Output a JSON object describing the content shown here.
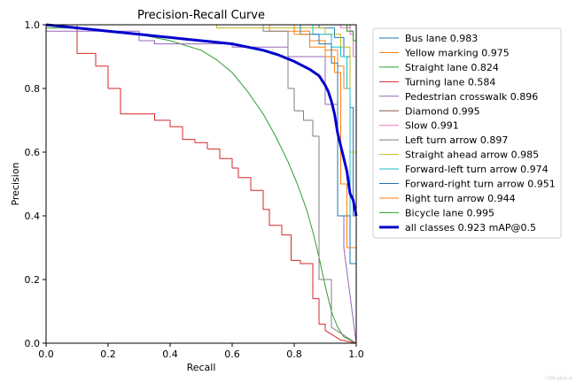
{
  "chart_data": {
    "type": "line",
    "title": "Precision-Recall Curve",
    "xlabel": "Recall",
    "ylabel": "Precision",
    "xlim": [
      0.0,
      1.0
    ],
    "ylim": [
      0.0,
      1.0
    ],
    "xticks": [
      "0.0",
      "0.2",
      "0.4",
      "0.6",
      "0.8",
      "1.0"
    ],
    "yticks": [
      "0.0",
      "0.2",
      "0.4",
      "0.6",
      "0.8",
      "1.0"
    ],
    "grid": false,
    "legend_position": "outside-right",
    "series": [
      {
        "name": "Bus lane 0.983",
        "color": "#1f77b4",
        "width": 1,
        "points": [
          [
            0,
            1
          ],
          [
            0.88,
            1
          ],
          [
            0.88,
            0.99
          ],
          [
            0.93,
            0.99
          ],
          [
            0.93,
            0.96
          ],
          [
            0.96,
            0.96
          ],
          [
            0.96,
            0.9
          ],
          [
            0.98,
            0.9
          ],
          [
            0.98,
            0.74
          ],
          [
            0.99,
            0.74
          ],
          [
            0.99,
            0.4
          ],
          [
            1.0,
            0.4
          ],
          [
            1.0,
            0.0
          ]
        ]
      },
      {
        "name": "Yellow marking 0.975",
        "color": "#ff7f0e",
        "width": 1,
        "points": [
          [
            0,
            1
          ],
          [
            0.72,
            1
          ],
          [
            0.72,
            0.98
          ],
          [
            0.85,
            0.98
          ],
          [
            0.85,
            0.95
          ],
          [
            0.9,
            0.95
          ],
          [
            0.9,
            0.92
          ],
          [
            0.94,
            0.92
          ],
          [
            0.94,
            0.87
          ],
          [
            0.96,
            0.87
          ],
          [
            0.96,
            0.8
          ],
          [
            0.98,
            0.8
          ],
          [
            0.98,
            0.6
          ],
          [
            1.0,
            0.6
          ],
          [
            1.0,
            0.0
          ]
        ]
      },
      {
        "name": "Straight lane 0.824",
        "color": "#2ca02c",
        "width": 1,
        "points": [
          [
            0,
            0.99
          ],
          [
            0.1,
            0.99
          ],
          [
            0.2,
            0.98
          ],
          [
            0.3,
            0.97
          ],
          [
            0.4,
            0.95
          ],
          [
            0.5,
            0.92
          ],
          [
            0.55,
            0.89
          ],
          [
            0.6,
            0.85
          ],
          [
            0.65,
            0.79
          ],
          [
            0.7,
            0.72
          ],
          [
            0.74,
            0.65
          ],
          [
            0.78,
            0.57
          ],
          [
            0.81,
            0.5
          ],
          [
            0.84,
            0.42
          ],
          [
            0.86,
            0.35
          ],
          [
            0.88,
            0.27
          ],
          [
            0.9,
            0.18
          ],
          [
            0.92,
            0.1
          ],
          [
            0.94,
            0.05
          ],
          [
            0.96,
            0.02
          ],
          [
            1.0,
            0.0
          ]
        ]
      },
      {
        "name": "Turning lane 0.584",
        "color": "#d62728",
        "width": 1,
        "points": [
          [
            0,
            1
          ],
          [
            0.1,
            1
          ],
          [
            0.1,
            0.91
          ],
          [
            0.16,
            0.91
          ],
          [
            0.16,
            0.87
          ],
          [
            0.2,
            0.87
          ],
          [
            0.2,
            0.8
          ],
          [
            0.24,
            0.8
          ],
          [
            0.24,
            0.72
          ],
          [
            0.35,
            0.72
          ],
          [
            0.35,
            0.7
          ],
          [
            0.4,
            0.7
          ],
          [
            0.4,
            0.68
          ],
          [
            0.44,
            0.68
          ],
          [
            0.44,
            0.64
          ],
          [
            0.48,
            0.64
          ],
          [
            0.48,
            0.63
          ],
          [
            0.52,
            0.63
          ],
          [
            0.52,
            0.61
          ],
          [
            0.56,
            0.61
          ],
          [
            0.56,
            0.58
          ],
          [
            0.6,
            0.58
          ],
          [
            0.6,
            0.55
          ],
          [
            0.62,
            0.55
          ],
          [
            0.62,
            0.52
          ],
          [
            0.66,
            0.52
          ],
          [
            0.66,
            0.48
          ],
          [
            0.7,
            0.48
          ],
          [
            0.7,
            0.42
          ],
          [
            0.72,
            0.42
          ],
          [
            0.72,
            0.37
          ],
          [
            0.76,
            0.37
          ],
          [
            0.76,
            0.34
          ],
          [
            0.79,
            0.34
          ],
          [
            0.79,
            0.26
          ],
          [
            0.82,
            0.26
          ],
          [
            0.82,
            0.25
          ],
          [
            0.86,
            0.25
          ],
          [
            0.86,
            0.14
          ],
          [
            0.88,
            0.14
          ],
          [
            0.88,
            0.06
          ],
          [
            0.9,
            0.06
          ],
          [
            0.9,
            0.04
          ],
          [
            0.95,
            0.01
          ],
          [
            1.0,
            0.0
          ]
        ]
      },
      {
        "name": "Pedestrian crosswalk 0.896",
        "color": "#9467bd",
        "width": 1,
        "points": [
          [
            0,
            0.98
          ],
          [
            0.3,
            0.98
          ],
          [
            0.3,
            0.95
          ],
          [
            0.35,
            0.95
          ],
          [
            0.35,
            0.94
          ],
          [
            0.6,
            0.94
          ],
          [
            0.6,
            0.93
          ],
          [
            0.78,
            0.93
          ],
          [
            0.78,
            0.9
          ],
          [
            0.9,
            0.9
          ],
          [
            0.9,
            0.75
          ],
          [
            0.94,
            0.75
          ],
          [
            0.94,
            0.4
          ],
          [
            0.96,
            0.4
          ],
          [
            0.96,
            0.3
          ],
          [
            1.0,
            0.0
          ]
        ]
      },
      {
        "name": "Diamond 0.995",
        "color": "#8c564b",
        "width": 1,
        "points": [
          [
            0,
            1
          ],
          [
            0.98,
            1
          ],
          [
            0.98,
            0.98
          ],
          [
            0.99,
            0.98
          ],
          [
            0.99,
            0.95
          ],
          [
            1.0,
            0.95
          ],
          [
            1.0,
            0.0
          ]
        ]
      },
      {
        "name": "Slow 0.991",
        "color": "#e377c2",
        "width": 1,
        "points": [
          [
            0,
            1
          ],
          [
            0.95,
            1
          ],
          [
            0.95,
            0.99
          ],
          [
            0.98,
            0.99
          ],
          [
            0.98,
            0.97
          ],
          [
            0.99,
            0.97
          ],
          [
            0.99,
            0.9
          ],
          [
            1.0,
            0.9
          ],
          [
            1.0,
            0.0
          ]
        ]
      },
      {
        "name": "Left turn arrow 0.897",
        "color": "#7f7f7f",
        "width": 1,
        "points": [
          [
            0,
            1
          ],
          [
            0.7,
            1
          ],
          [
            0.7,
            0.98
          ],
          [
            0.78,
            0.98
          ],
          [
            0.78,
            0.8
          ],
          [
            0.8,
            0.8
          ],
          [
            0.8,
            0.73
          ],
          [
            0.83,
            0.73
          ],
          [
            0.83,
            0.7
          ],
          [
            0.86,
            0.7
          ],
          [
            0.86,
            0.65
          ],
          [
            0.88,
            0.65
          ],
          [
            0.88,
            0.2
          ],
          [
            0.92,
            0.2
          ],
          [
            0.92,
            0.05
          ],
          [
            1.0,
            0.0
          ]
        ]
      },
      {
        "name": "Straight ahead arrow 0.985",
        "color": "#bcbd22",
        "width": 1,
        "points": [
          [
            0,
            1
          ],
          [
            0.55,
            1
          ],
          [
            0.55,
            0.99
          ],
          [
            0.9,
            0.99
          ],
          [
            0.9,
            0.97
          ],
          [
            0.95,
            0.97
          ],
          [
            0.95,
            0.93
          ],
          [
            0.98,
            0.93
          ],
          [
            0.98,
            0.6
          ],
          [
            1.0,
            0.6
          ],
          [
            1.0,
            0.0
          ]
        ]
      },
      {
        "name": "Forward-left turn arrow 0.974",
        "color": "#17becf",
        "width": 1,
        "points": [
          [
            0,
            1
          ],
          [
            0.86,
            1
          ],
          [
            0.86,
            0.97
          ],
          [
            0.92,
            0.97
          ],
          [
            0.92,
            0.93
          ],
          [
            0.95,
            0.93
          ],
          [
            0.95,
            0.9
          ],
          [
            0.97,
            0.9
          ],
          [
            0.97,
            0.8
          ],
          [
            0.98,
            0.8
          ],
          [
            0.98,
            0.3
          ],
          [
            1.0,
            0.3
          ],
          [
            1.0,
            0.0
          ]
        ]
      },
      {
        "name": "Forward-right turn arrow 0.951",
        "color": "#1f77b4",
        "width": 1,
        "points": [
          [
            0,
            1
          ],
          [
            0.82,
            1
          ],
          [
            0.82,
            0.97
          ],
          [
            0.88,
            0.97
          ],
          [
            0.88,
            0.94
          ],
          [
            0.92,
            0.94
          ],
          [
            0.92,
            0.88
          ],
          [
            0.94,
            0.88
          ],
          [
            0.94,
            0.4
          ],
          [
            0.98,
            0.4
          ],
          [
            0.98,
            0.25
          ],
          [
            1.0,
            0.25
          ],
          [
            1.0,
            0.0
          ]
        ]
      },
      {
        "name": "Right turn arrow 0.944",
        "color": "#ff7f0e",
        "width": 1,
        "points": [
          [
            0,
            1
          ],
          [
            0.8,
            1
          ],
          [
            0.8,
            0.97
          ],
          [
            0.85,
            0.97
          ],
          [
            0.85,
            0.93
          ],
          [
            0.9,
            0.93
          ],
          [
            0.9,
            0.9
          ],
          [
            0.93,
            0.9
          ],
          [
            0.93,
            0.85
          ],
          [
            0.95,
            0.85
          ],
          [
            0.95,
            0.5
          ],
          [
            0.97,
            0.5
          ],
          [
            0.97,
            0.3
          ],
          [
            1.0,
            0.3
          ],
          [
            1.0,
            0.0
          ]
        ]
      },
      {
        "name": "Bicycle lane 0.995",
        "color": "#2ca02c",
        "width": 1,
        "points": [
          [
            0,
            1
          ],
          [
            0.97,
            1
          ],
          [
            0.97,
            0.98
          ],
          [
            0.99,
            0.98
          ],
          [
            0.99,
            0.95
          ],
          [
            1.0,
            0.95
          ],
          [
            1.0,
            0.0
          ]
        ]
      },
      {
        "name": "all classes 0.923 mAP@0.5",
        "color": "#0000cc",
        "width": 3,
        "points": [
          [
            0,
            1
          ],
          [
            0.05,
            0.995
          ],
          [
            0.1,
            0.99
          ],
          [
            0.15,
            0.985
          ],
          [
            0.2,
            0.98
          ],
          [
            0.25,
            0.975
          ],
          [
            0.3,
            0.97
          ],
          [
            0.35,
            0.965
          ],
          [
            0.4,
            0.96
          ],
          [
            0.45,
            0.955
          ],
          [
            0.5,
            0.95
          ],
          [
            0.55,
            0.945
          ],
          [
            0.6,
            0.94
          ],
          [
            0.65,
            0.93
          ],
          [
            0.7,
            0.92
          ],
          [
            0.75,
            0.905
          ],
          [
            0.8,
            0.885
          ],
          [
            0.85,
            0.86
          ],
          [
            0.88,
            0.84
          ],
          [
            0.9,
            0.81
          ],
          [
            0.91,
            0.79
          ],
          [
            0.92,
            0.76
          ],
          [
            0.93,
            0.72
          ],
          [
            0.94,
            0.66
          ],
          [
            0.95,
            0.62
          ],
          [
            0.96,
            0.58
          ],
          [
            0.97,
            0.54
          ],
          [
            0.98,
            0.47
          ],
          [
            0.99,
            0.45
          ],
          [
            1.0,
            0.4
          ]
        ]
      }
    ]
  },
  "watermark": "CSDN @佚名_林"
}
